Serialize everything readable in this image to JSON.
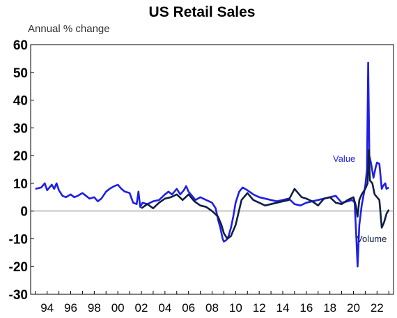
{
  "chart_data": {
    "type": "line",
    "title": "US Retail Sales",
    "unit_label": "Annual % change",
    "ylim": [
      -30,
      60
    ],
    "yticks": [
      60,
      50,
      40,
      30,
      20,
      10,
      0,
      -10,
      -20,
      -30
    ],
    "xlim": [
      1992.6,
      2023.4
    ],
    "xticks": [
      {
        "x": 1994,
        "label": "94"
      },
      {
        "x": 1996,
        "label": "96"
      },
      {
        "x": 1998,
        "label": "98"
      },
      {
        "x": 2000,
        "label": "00"
      },
      {
        "x": 2002,
        "label": "02"
      },
      {
        "x": 2004,
        "label": "04"
      },
      {
        "x": 2006,
        "label": "06"
      },
      {
        "x": 2008,
        "label": "08"
      },
      {
        "x": 2010,
        "label": "10"
      },
      {
        "x": 2012,
        "label": "12"
      },
      {
        "x": 2014,
        "label": "14"
      },
      {
        "x": 2016,
        "label": "16"
      },
      {
        "x": 2018,
        "label": "18"
      },
      {
        "x": 2020,
        "label": "20"
      },
      {
        "x": 2022,
        "label": "22"
      }
    ],
    "grid": false,
    "zero_line": true,
    "series": [
      {
        "name": "Value",
        "color": "#1f1fe6",
        "x": [
          1993.0,
          1993.5,
          1993.8,
          1994.0,
          1994.4,
          1994.6,
          1994.8,
          1995.0,
          1995.3,
          1995.6,
          1996.0,
          1996.3,
          1996.6,
          1997.0,
          1997.3,
          1997.6,
          1998.0,
          1998.3,
          1998.6,
          1999.0,
          1999.3,
          1999.7,
          2000.0,
          2000.3,
          2000.6,
          2001.0,
          2001.3,
          2001.6,
          2001.75,
          2001.9,
          2002.1,
          2002.5,
          2003.0,
          2003.5,
          2004.0,
          2004.3,
          2004.6,
          2005.0,
          2005.3,
          2005.6,
          2005.8,
          2006.0,
          2006.3,
          2006.6,
          2007.0,
          2007.5,
          2008.0,
          2008.3,
          2008.5,
          2008.7,
          2008.9,
          2009.0,
          2009.2,
          2009.4,
          2009.6,
          2009.8,
          2010.0,
          2010.3,
          2010.6,
          2011.0,
          2011.5,
          2012.0,
          2012.5,
          2013.0,
          2013.5,
          2014.0,
          2014.5,
          2015.0,
          2015.5,
          2016.0,
          2016.5,
          2017.0,
          2017.5,
          2018.0,
          2018.5,
          2019.0,
          2019.5,
          2019.9,
          2020.1,
          2020.25,
          2020.35,
          2020.5,
          2020.7,
          2021.0,
          2021.15,
          2021.25,
          2021.35,
          2021.5,
          2021.7,
          2021.9,
          2022.0,
          2022.2,
          2022.4,
          2022.5,
          2022.7,
          2022.8,
          2023.0
        ],
        "y": [
          8,
          8.5,
          10,
          7.5,
          9.5,
          8,
          10,
          7.5,
          5.5,
          5,
          6,
          5,
          5.5,
          6.5,
          5.5,
          4.5,
          5,
          3.5,
          4.5,
          7,
          8,
          9,
          9.5,
          8,
          7,
          6.5,
          3,
          2.5,
          7,
          1.5,
          3,
          2.5,
          3.5,
          4,
          6,
          7,
          6,
          8,
          6,
          7.5,
          9,
          7,
          5.5,
          4,
          5,
          4,
          3,
          1,
          -3,
          -6,
          -10,
          -11,
          -10.5,
          -9,
          -6,
          -2,
          3,
          7,
          8.5,
          7.5,
          6,
          5,
          4.5,
          4,
          3.5,
          4,
          4.5,
          2.5,
          2,
          3,
          3.5,
          4,
          4.5,
          5,
          5.5,
          3,
          3.5,
          4,
          3,
          -10,
          -20,
          -5,
          2,
          9,
          15,
          53.5,
          20,
          17,
          12,
          16,
          17.5,
          17,
          8,
          9,
          10,
          8,
          8.5
        ]
      },
      {
        "name": "Volume",
        "color": "#0f1f44",
        "x": [
          2002.0,
          2002.5,
          2003.0,
          2003.5,
          2004.0,
          2004.5,
          2005.0,
          2005.5,
          2006.0,
          2006.5,
          2007.0,
          2007.5,
          2008.0,
          2008.5,
          2008.8,
          2009.0,
          2009.3,
          2009.6,
          2010.0,
          2010.5,
          2011.0,
          2011.5,
          2012.0,
          2012.5,
          2013.0,
          2013.5,
          2014.0,
          2014.5,
          2015.0,
          2015.3,
          2015.6,
          2016.0,
          2016.5,
          2017.0,
          2017.5,
          2018.0,
          2018.5,
          2019.0,
          2019.5,
          2020.0,
          2020.2,
          2020.35,
          2020.5,
          2020.7,
          2021.0,
          2021.2,
          2021.3,
          2021.4,
          2021.6,
          2021.8,
          2022.0,
          2022.2,
          2022.4,
          2022.6,
          2022.8,
          2023.0
        ],
        "y": [
          1,
          2.5,
          1,
          3,
          4.5,
          5,
          6,
          4,
          6,
          3.5,
          2,
          1.5,
          0,
          -2,
          -5,
          -8,
          -10,
          -9,
          -5,
          4,
          6.5,
          4,
          3,
          2,
          2.5,
          3,
          3.5,
          4,
          8,
          6.5,
          5,
          4.5,
          3.5,
          2,
          4.5,
          5,
          3,
          2.5,
          4,
          5,
          2,
          -2,
          4,
          6,
          8,
          10,
          22,
          11,
          10,
          6,
          5,
          4,
          -6,
          -4,
          -1,
          0.5
        ]
      }
    ]
  }
}
